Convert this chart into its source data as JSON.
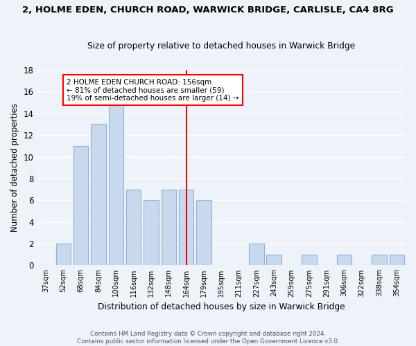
{
  "title": "2, HOLME EDEN, CHURCH ROAD, WARWICK BRIDGE, CARLISLE, CA4 8RG",
  "subtitle": "Size of property relative to detached houses in Warwick Bridge",
  "xlabel": "Distribution of detached houses by size in Warwick Bridge",
  "ylabel": "Number of detached properties",
  "bar_labels": [
    "37sqm",
    "52sqm",
    "68sqm",
    "84sqm",
    "100sqm",
    "116sqm",
    "132sqm",
    "148sqm",
    "164sqm",
    "179sqm",
    "195sqm",
    "211sqm",
    "227sqm",
    "243sqm",
    "259sqm",
    "275sqm",
    "291sqm",
    "306sqm",
    "322sqm",
    "338sqm",
    "354sqm"
  ],
  "bar_values": [
    0,
    2,
    11,
    13,
    15,
    7,
    6,
    7,
    7,
    6,
    0,
    0,
    2,
    1,
    0,
    1,
    0,
    1,
    0,
    1,
    1
  ],
  "bar_color": "#c8d9ee",
  "bar_edge_color": "#8fb4d8",
  "ref_bar_index": 8,
  "ylim": [
    0,
    18
  ],
  "yticks": [
    0,
    2,
    4,
    6,
    8,
    10,
    12,
    14,
    16,
    18
  ],
  "annotation_title": "2 HOLME EDEN CHURCH ROAD: 156sqm",
  "annotation_line1": "← 81% of detached houses are smaller (59)",
  "annotation_line2": "19% of semi-detached houses are larger (14) →",
  "footer_line1": "Contains HM Land Registry data © Crown copyright and database right 2024.",
  "footer_line2": "Contains public sector information licensed under the Open Government Licence v3.0.",
  "bg_color": "#eef2f9",
  "grid_color": "#ffffff"
}
